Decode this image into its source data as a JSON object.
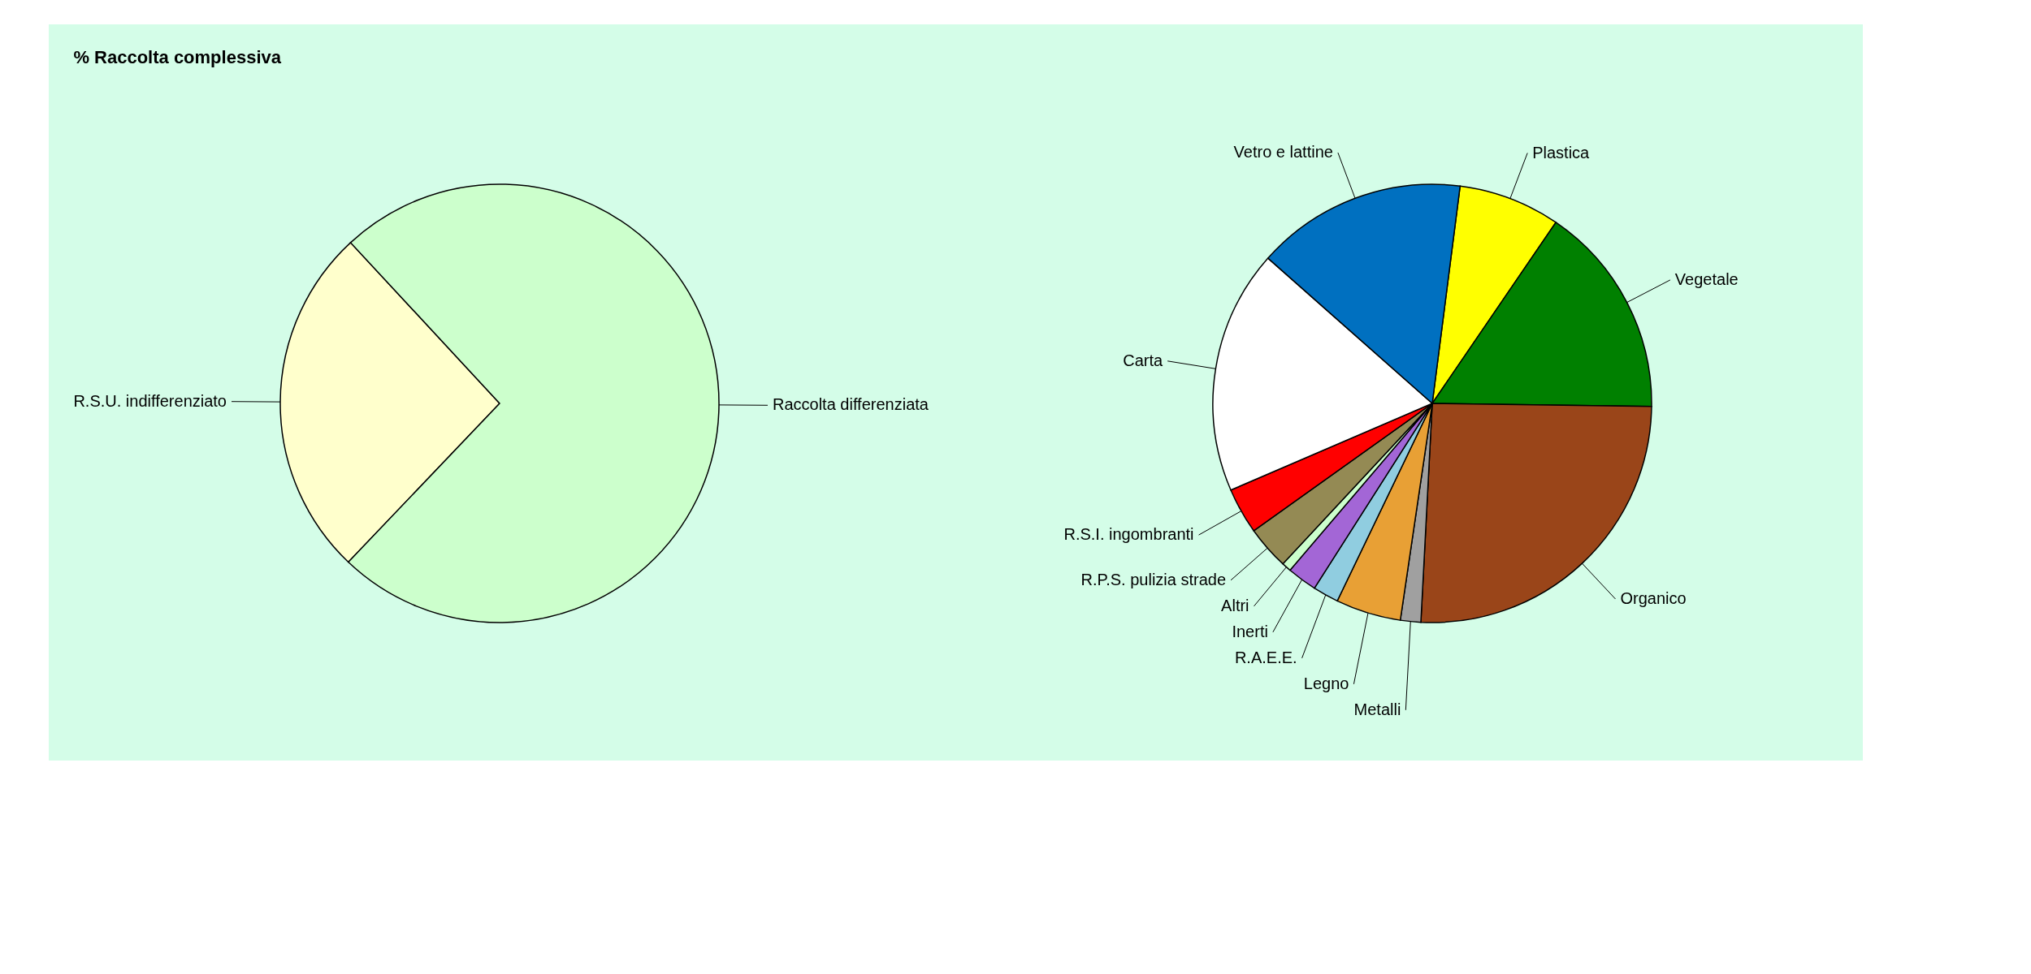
{
  "chart_data": [
    {
      "type": "pie",
      "title": "% Raccolta complessiva",
      "categories": [
        "R.S.U. indifferenziato",
        "Raccolta differenziata"
      ],
      "values": [
        26,
        74
      ],
      "colors": [
        "#ffffcc",
        "#ccffcc"
      ]
    },
    {
      "type": "pie",
      "categories": [
        "Plastica",
        "Vegetale",
        "Organico",
        "Metalli",
        "Legno",
        "R.A.E.E.",
        "Inerti",
        "Altri",
        "R.P.S. pulizia strade",
        "R.S.I. ingombranti",
        "Carta",
        "Vetro e lattine"
      ],
      "values": [
        7.5,
        15.7,
        25.6,
        1.5,
        4.8,
        1.9,
        2.2,
        0.7,
        3.2,
        3.4,
        18,
        15.5
      ],
      "colors": [
        "#ffff00",
        "#008000",
        "#9a4519",
        "#a0a0a0",
        "#e8a035",
        "#90cde0",
        "#a366d6",
        "#ccffcc",
        "#948a54",
        "#ff0000",
        "#ffffff",
        "#0070c0"
      ]
    }
  ]
}
